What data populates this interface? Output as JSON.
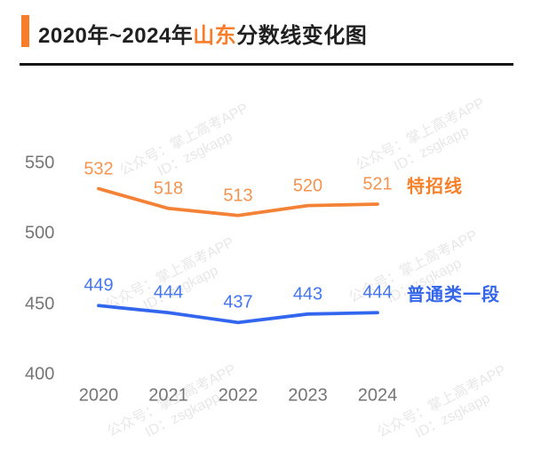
{
  "title": {
    "prefix": "2020年~2024年",
    "region": "山东",
    "suffix": "分数线变化图"
  },
  "watermark": {
    "line1": "公众号：掌上高考APP",
    "line2": "ID：zsgkapp"
  },
  "colors": {
    "accent_orange": "#F87D2A",
    "title_black": "#202020",
    "axis_gray": "#757575"
  },
  "chart_data": {
    "type": "line",
    "title": "2020年~2024年山东分数线变化图",
    "categories": [
      "2020",
      "2021",
      "2022",
      "2023",
      "2024"
    ],
    "series": [
      {
        "name": "特招线",
        "values": [
          532,
          518,
          513,
          520,
          521
        ],
        "color": "#F48236",
        "label_color": "#F5944F",
        "legend_color": "#F67F28"
      },
      {
        "name": "普通类一段",
        "values": [
          449,
          444,
          437,
          443,
          444
        ],
        "color": "#3366EE",
        "label_color": "#4376EF",
        "legend_color": "#3366EB"
      }
    ],
    "yticks": [
      550,
      500,
      450,
      400
    ],
    "ylim": [
      400,
      550
    ],
    "xlabel": "",
    "ylabel": "",
    "grid": false,
    "legend_position": "right-of-last-point"
  }
}
